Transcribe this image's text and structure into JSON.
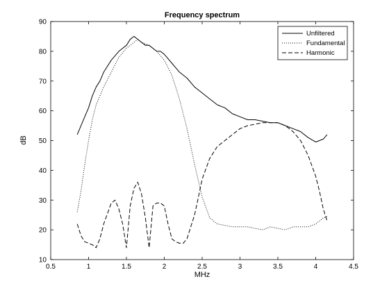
{
  "chart_data": {
    "type": "line",
    "title": "Frequency spectrum",
    "xlabel": "MHz",
    "ylabel": "dB",
    "xlim": [
      0.5,
      4.5
    ],
    "ylim": [
      10,
      90
    ],
    "xticks": [
      0.5,
      1,
      1.5,
      2,
      2.5,
      3,
      3.5,
      4,
      4.5
    ],
    "xtick_labels": [
      "0.5",
      "1",
      "1.5",
      "2",
      "2.5",
      "3",
      "3.5",
      "4",
      "4.5"
    ],
    "yticks": [
      10,
      20,
      30,
      40,
      50,
      60,
      70,
      80,
      90
    ],
    "ytick_labels": [
      "10",
      "20",
      "30",
      "40",
      "50",
      "60",
      "70",
      "80",
      "90"
    ],
    "grid": false,
    "legend": "top-right",
    "series": [
      {
        "name": "Unfiltered",
        "style": "solid",
        "color": "#000000",
        "x": [
          0.85,
          0.9,
          0.95,
          1.0,
          1.05,
          1.1,
          1.15,
          1.2,
          1.3,
          1.4,
          1.5,
          1.55,
          1.6,
          1.65,
          1.7,
          1.75,
          1.8,
          1.85,
          1.9,
          1.95,
          2.0,
          2.1,
          2.2,
          2.3,
          2.4,
          2.5,
          2.6,
          2.7,
          2.8,
          2.9,
          3.0,
          3.1,
          3.2,
          3.3,
          3.4,
          3.5,
          3.6,
          3.7,
          3.8,
          3.9,
          4.0,
          4.05,
          4.1,
          4.15
        ],
        "y": [
          52,
          55,
          58,
          61,
          65,
          68,
          70,
          73,
          77,
          80,
          82,
          84,
          85,
          84,
          83,
          82,
          82,
          81,
          80,
          80,
          79,
          76,
          73,
          71,
          68,
          66,
          64,
          62,
          61,
          59,
          58,
          57,
          57,
          56.5,
          56,
          56,
          55,
          54,
          53,
          51,
          49.5,
          50,
          50.5,
          52
        ]
      },
      {
        "name": "Fundamental",
        "style": "dotted",
        "color": "#000000",
        "x": [
          0.85,
          0.9,
          0.95,
          1.0,
          1.05,
          1.1,
          1.2,
          1.3,
          1.4,
          1.5,
          1.6,
          1.65,
          1.7,
          1.8,
          1.9,
          2.0,
          2.1,
          2.2,
          2.3,
          2.4,
          2.5,
          2.6,
          2.7,
          2.8,
          2.9,
          3.0,
          3.1,
          3.2,
          3.3,
          3.4,
          3.5,
          3.6,
          3.7,
          3.8,
          3.9,
          4.0,
          4.1,
          4.15
        ],
        "y": [
          26,
          33,
          42,
          50,
          57,
          62,
          68,
          73,
          78,
          81,
          83,
          84,
          83,
          82,
          80,
          77,
          72,
          64,
          54,
          42,
          31,
          24,
          22,
          21.5,
          21,
          21,
          21,
          20.5,
          20,
          21,
          20.5,
          20,
          21,
          21,
          21,
          22,
          24,
          24.5
        ]
      },
      {
        "name": "Harmonic",
        "style": "dashed",
        "color": "#000000",
        "x": [
          0.85,
          0.9,
          0.95,
          1.0,
          1.05,
          1.1,
          1.15,
          1.2,
          1.3,
          1.35,
          1.4,
          1.45,
          1.5,
          1.55,
          1.6,
          1.65,
          1.7,
          1.75,
          1.8,
          1.85,
          1.9,
          1.95,
          2.0,
          2.05,
          2.1,
          2.15,
          2.2,
          2.25,
          2.3,
          2.35,
          2.4,
          2.45,
          2.5,
          2.6,
          2.7,
          2.8,
          2.9,
          3.0,
          3.1,
          3.2,
          3.3,
          3.4,
          3.5,
          3.6,
          3.7,
          3.8,
          3.9,
          4.0,
          4.05,
          4.1,
          4.15
        ],
        "y": [
          22,
          18,
          16,
          15.5,
          15,
          14,
          17,
          22,
          29,
          30,
          27,
          22,
          14,
          28,
          34,
          36,
          32,
          24,
          14,
          28,
          29,
          29,
          28,
          22,
          17,
          16,
          15.5,
          15.5,
          17,
          21,
          25,
          31,
          37,
          44,
          48,
          50,
          52,
          54,
          55,
          55.5,
          56,
          56,
          56,
          55,
          53,
          50,
          45,
          38,
          33,
          27,
          23
        ]
      }
    ]
  }
}
